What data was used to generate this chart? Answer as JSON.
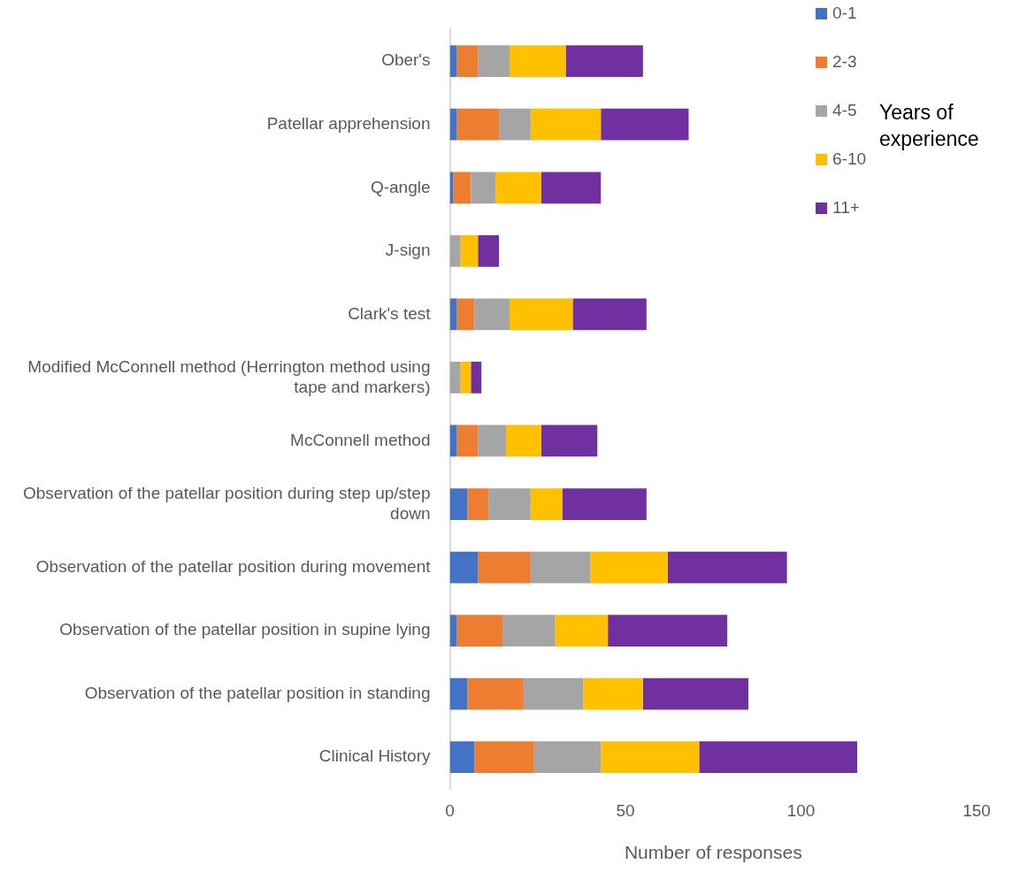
{
  "chart_data": {
    "type": "bar",
    "orientation": "horizontal",
    "stacked": true,
    "xlabel": "Number of responses",
    "legend_title": "Years of experience",
    "legend": "top right",
    "grid": false,
    "categories": [
      "Ober's",
      "Patellar apprehension",
      "Q-angle",
      "J-sign",
      "Clark's test",
      "Modified McConnell method (Herrington method using tape and markers)",
      "McConnell method",
      "Observation of the patellar position during step up/step down",
      "Observation of the patellar position during movement",
      "Observation of the patellar position in supine lying",
      "Observation of the patellar position in standing",
      "Clinical History"
    ],
    "xlim": [
      0,
      150
    ],
    "xticks": [
      0,
      50,
      100,
      150
    ],
    "series": [
      {
        "name": "0-1",
        "color": "#4472c4",
        "values": [
          2,
          2,
          1,
          0,
          2,
          0,
          2,
          5,
          8,
          2,
          5,
          7
        ]
      },
      {
        "name": "2-3",
        "color": "#ed7d31",
        "values": [
          6,
          12,
          5,
          0,
          5,
          0,
          6,
          6,
          15,
          13,
          16,
          17
        ]
      },
      {
        "name": "4-5",
        "color": "#a5a5a5",
        "values": [
          9,
          9,
          7,
          3,
          10,
          3,
          8,
          12,
          17,
          15,
          17,
          19
        ]
      },
      {
        "name": "6-10",
        "color": "#ffc000",
        "values": [
          16,
          20,
          13,
          5,
          18,
          3,
          10,
          9,
          22,
          15,
          17,
          28
        ]
      },
      {
        "name": "11+",
        "color": "#7030a0",
        "values": [
          22,
          25,
          17,
          6,
          21,
          3,
          16,
          24,
          34,
          34,
          30,
          45
        ]
      }
    ]
  }
}
